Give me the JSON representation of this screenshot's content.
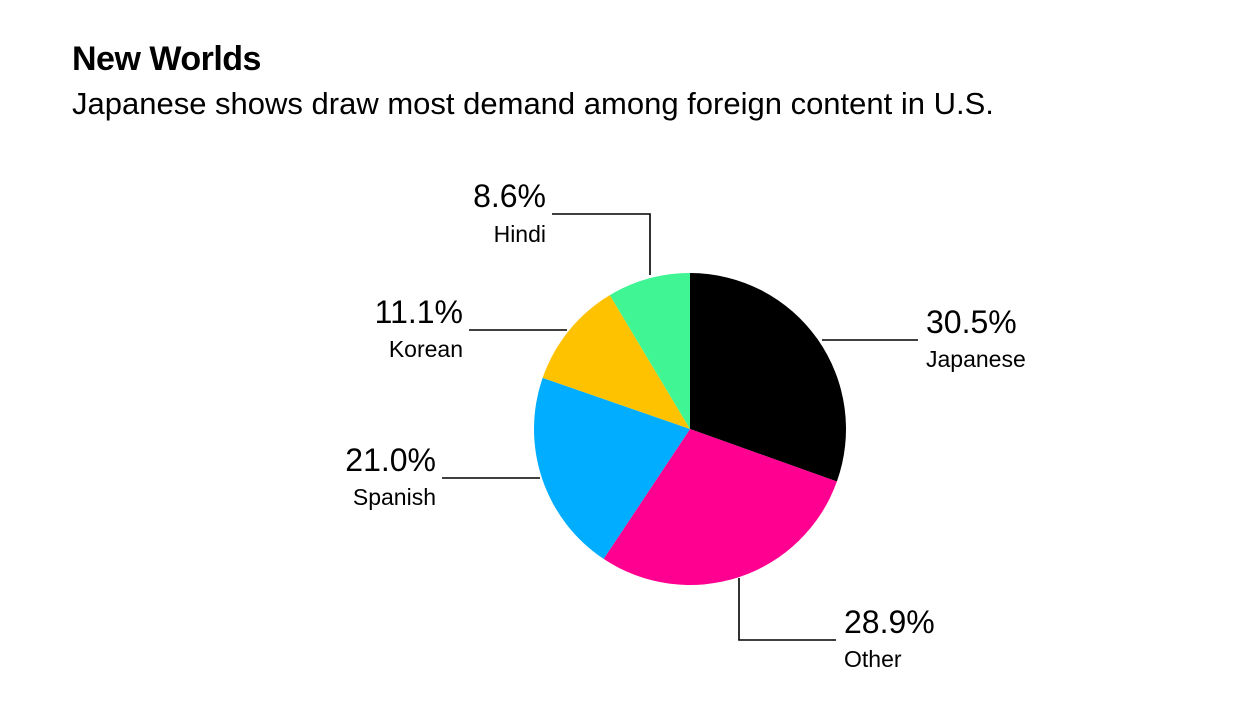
{
  "header": {
    "title": "New Worlds",
    "subtitle": "Japanese shows draw most demand among foreign content in U.S."
  },
  "chart_data": {
    "type": "pie",
    "title": "New Worlds",
    "subtitle": "Japanese shows draw most demand among foreign content in U.S.",
    "slices": [
      {
        "name": "Japanese",
        "value": 30.5,
        "label": "30.5%",
        "color": "#000000"
      },
      {
        "name": "Other",
        "value": 28.9,
        "label": "28.9%",
        "color": "#ff0090"
      },
      {
        "name": "Spanish",
        "value": 21.0,
        "label": "21.0%",
        "color": "#00adff"
      },
      {
        "name": "Korean",
        "value": 11.1,
        "label": "11.1%",
        "color": "#ffc200"
      },
      {
        "name": "Hindi",
        "value": 8.6,
        "label": "8.6%",
        "color": "#40f593"
      }
    ],
    "start": "12 o'clock",
    "direction": "clockwise",
    "legend": "none"
  }
}
